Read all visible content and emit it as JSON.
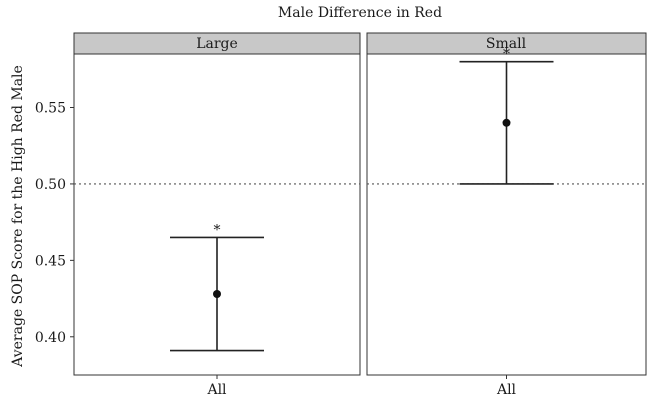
{
  "chart_data": {
    "type": "errorbar",
    "title": "Male Difference in Red",
    "ylabel": "Average SOP Score for the High Red Male",
    "xlabel": "",
    "ylim": [
      0.375,
      0.585
    ],
    "yticks": [
      0.4,
      0.45,
      0.5,
      0.55
    ],
    "ytick_labels": [
      "0.40",
      "0.45",
      "0.50",
      "0.55"
    ],
    "reference_line": 0.5,
    "reference_line_style": "dotted",
    "grid": false,
    "facets": [
      {
        "label": "Large",
        "category": "All",
        "estimate": 0.428,
        "ci_low": 0.391,
        "ci_high": 0.465,
        "significance": "*"
      },
      {
        "label": "Small",
        "category": "All",
        "estimate": 0.54,
        "ci_low": 0.5,
        "ci_high": 0.58,
        "significance": "*"
      }
    ]
  }
}
